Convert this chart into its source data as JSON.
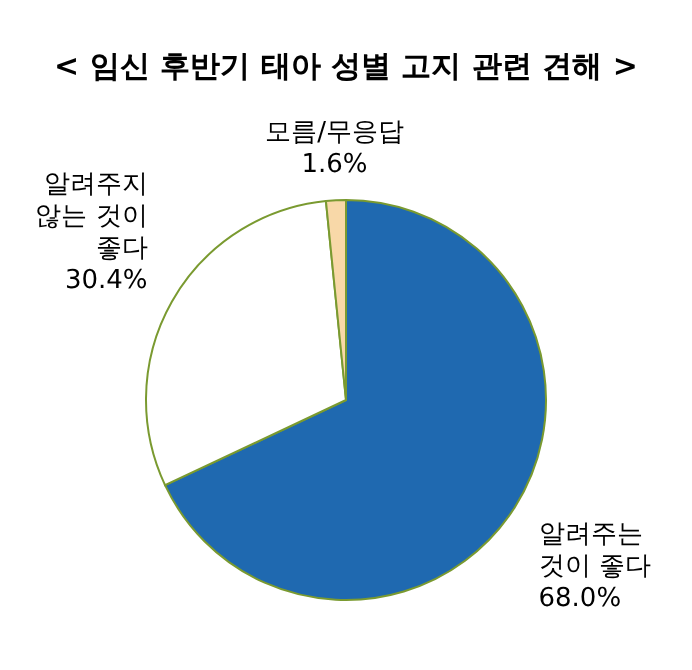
{
  "chart_data": {
    "type": "pie",
    "title": "< 임신 후반기 태아 성별 고지 관련 견해 >",
    "categories": [
      "알려주는 것이 좋다",
      "알려주지 않는 것이 좋다",
      "모름/무응답"
    ],
    "values": [
      68.0,
      30.4,
      1.6
    ],
    "value_labels": [
      "68.0%",
      "30.4%",
      "1.6%"
    ],
    "colors": [
      "#1f69b0",
      "#ffffff",
      "#f8d8a8"
    ]
  }
}
